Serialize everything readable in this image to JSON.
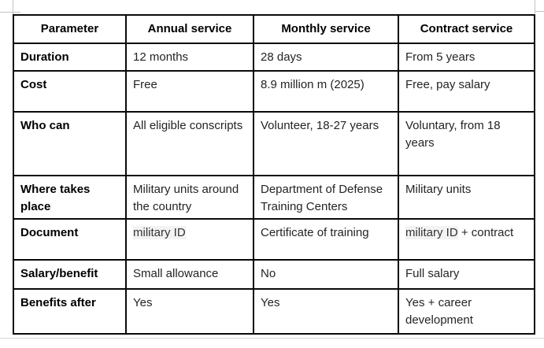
{
  "page": {
    "background_color": "#ffffff",
    "crop_mark_color": "#c3c3c3",
    "bottom_rule_color": "#d8d8d8"
  },
  "table": {
    "border_color": "#0a0a0a",
    "highlight_color": "#f3f3f3",
    "headers": [
      "Parameter",
      "Annual service",
      "Monthly service",
      "Contract service"
    ],
    "rows": [
      {
        "param": "Duration",
        "annual": "12 months",
        "monthly": "28 days",
        "contract": "From 5 years"
      },
      {
        "param": "Cost",
        "annual": "Free",
        "monthly": "8.9 million m (2025)",
        "contract": "Free, pay salary"
      },
      {
        "param": "Who can",
        "annual": "All eligible conscripts",
        "monthly": "Volunteer, 18-27 years",
        "contract": "Voluntary, from 18 years"
      },
      {
        "param": "Where takes place",
        "annual": "Military units around the country",
        "monthly": "Department of Defense Training Centers",
        "contract": "Military units"
      },
      {
        "param": "Document",
        "annual_highlighted": "military ID",
        "monthly": "Certificate of training",
        "contract_highlighted": "military ID",
        "contract_rest": " + contract"
      },
      {
        "param": "Salary/benefit",
        "annual": "Small allowance",
        "monthly": "No",
        "contract": "Full salary"
      },
      {
        "param": "Benefits after",
        "annual": "Yes",
        "monthly": "Yes",
        "contract": "Yes + career development"
      }
    ]
  }
}
